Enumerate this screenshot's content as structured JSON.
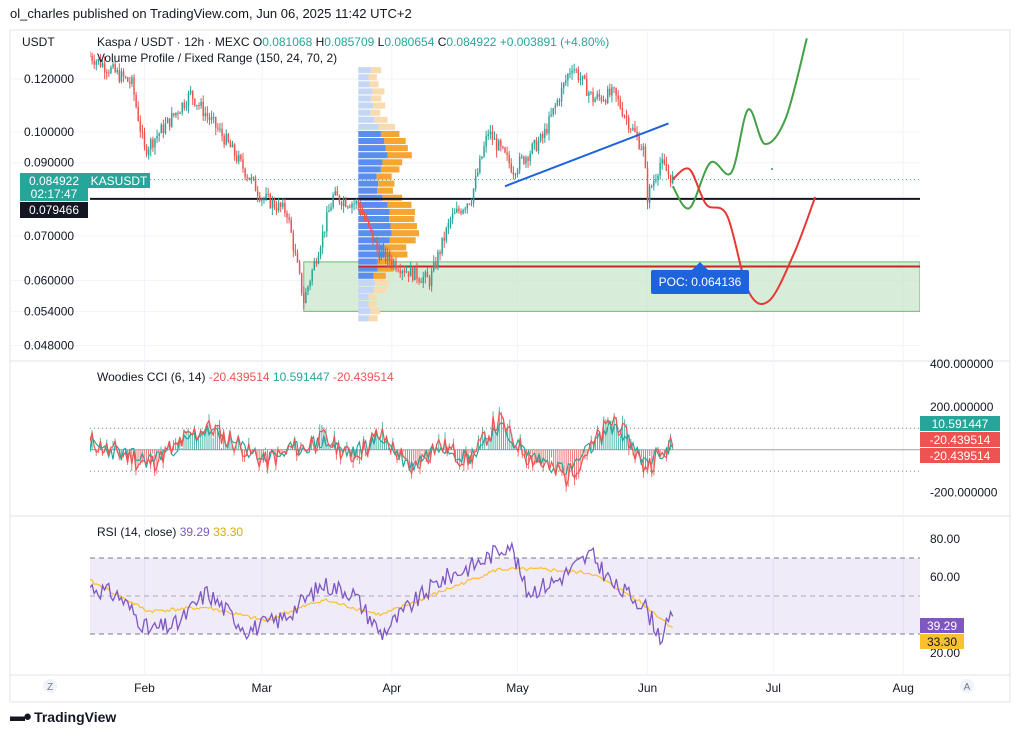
{
  "header": {
    "published": "ol_charles published on TradingView.com, Jun 06, 2025 11:42 UTC+2"
  },
  "branding": {
    "logo_text": "TradingView"
  },
  "price_pane": {
    "currency": "USDT",
    "symbol_line": "Kaspa / USDT · 12h · MEXC",
    "ohlc": {
      "o_label": "O",
      "o": "0.081068",
      "h_label": "H",
      "h": "0.085709",
      "l_label": "L",
      "l": "0.080654",
      "c_label": "C",
      "c": "0.084922",
      "change": "+0.003891 (+4.80%)"
    },
    "indicator": "Volume Profile / Fixed Range (150, 24, 70, 2)",
    "ticks": [
      "0.120000",
      "0.100000",
      "0.090000",
      "0.070000",
      "0.060000",
      "0.054000",
      "0.048000"
    ],
    "last_price": {
      "ticker": "KASUSDT",
      "value": "0.084922",
      "countdown": "02:17:47"
    },
    "line_label": "0.079466",
    "poc_label": "POC: 0.064136"
  },
  "cci_pane": {
    "title": "Woodies CCI (6, 14)",
    "v1": "-20.439514",
    "v2": "10.591447",
    "v3": "-20.439514",
    "ticks": [
      "400.000000",
      "200.000000",
      "-200.000000"
    ],
    "badges": [
      "10.591447",
      "-20.439514",
      "-20.439514"
    ]
  },
  "rsi_pane": {
    "title": "RSI (14, close)",
    "v1": "39.29",
    "v2": "33.30",
    "ticks": [
      "80.00",
      "60.00",
      "20.00"
    ],
    "badges": [
      "39.29",
      "33.30"
    ]
  },
  "time_axis": {
    "labels": [
      "Feb",
      "Mar",
      "Apr",
      "May",
      "Jun",
      "Jul",
      "Aug"
    ],
    "left_icon": "Z",
    "right_icon": "A"
  },
  "colors": {
    "up": "#26a69a",
    "down": "#ef5350",
    "rsi": "#7e57c2",
    "rsi_ma": "#fbc02d",
    "blue": "#1e62dc",
    "green_proj": "#43a047",
    "red_proj": "#e53935",
    "zone": "#c8e6c9"
  },
  "chart_data": [
    {
      "type": "candlestick",
      "title": "Kaspa / USDT · 12h · MEXC",
      "ylabel": "USDT",
      "y_scale": "log",
      "ylim": [
        0.046,
        0.142
      ],
      "x": [
        "2025-01-19",
        "2025-08-05"
      ],
      "path": [
        [
          "2025-01-19",
          0.13
        ],
        [
          "2025-01-29",
          0.118
        ],
        [
          "2025-02-01",
          0.094
        ],
        [
          "2025-02-07",
          0.104
        ],
        [
          "2025-02-12",
          0.114
        ],
        [
          "2025-02-20",
          0.098
        ],
        [
          "2025-03-01",
          0.08
        ],
        [
          "2025-03-07",
          0.076
        ],
        [
          "2025-03-11",
          0.056
        ],
        [
          "2025-03-18",
          0.08
        ],
        [
          "2025-03-24",
          0.078
        ],
        [
          "2025-03-29",
          0.066
        ],
        [
          "2025-04-05",
          0.062
        ],
        [
          "2025-04-10",
          0.06
        ],
        [
          "2025-04-15",
          0.074
        ],
        [
          "2025-04-20",
          0.08
        ],
        [
          "2025-04-24",
          0.1
        ],
        [
          "2025-04-30",
          0.088
        ],
        [
          "2025-05-07",
          0.098
        ],
        [
          "2025-05-14",
          0.126
        ],
        [
          "2025-05-19",
          0.112
        ],
        [
          "2025-05-24",
          0.114
        ],
        [
          "2025-05-31",
          0.094
        ],
        [
          "2025-06-01",
          0.08
        ],
        [
          "2025-06-04",
          0.09
        ],
        [
          "2025-06-07",
          0.084922
        ]
      ],
      "lines": [
        {
          "value": 0.079466
        },
        {
          "value": 0.063
        }
      ],
      "zone": [
        0.054,
        0.064
      ],
      "trendline": [
        [
          "2025-04-28",
          0.083
        ],
        [
          "2025-06-06",
          0.103
        ]
      ],
      "projections": [
        {
          "color": "green",
          "points": [
            [
              "2025-06-07",
              0.083
            ],
            [
              "2025-06-11",
              0.077
            ],
            [
              "2025-06-16",
              0.09
            ],
            [
              "2025-06-21",
              0.087
            ],
            [
              "2025-06-25",
              0.108
            ],
            [
              "2025-06-29",
              0.096
            ],
            [
              "2025-07-04",
              0.105
            ],
            [
              "2025-07-09",
              0.138
            ]
          ]
        },
        {
          "color": "red",
          "points": [
            [
              "2025-06-07",
              0.085
            ],
            [
              "2025-06-11",
              0.088
            ],
            [
              "2025-06-15",
              0.078
            ],
            [
              "2025-06-20",
              0.075
            ],
            [
              "2025-06-25",
              0.058
            ],
            [
              "2025-06-30",
              0.056
            ],
            [
              "2025-07-06",
              0.066
            ],
            [
              "2025-07-11",
              0.08
            ]
          ]
        }
      ],
      "volume_profile_poc": 0.064136
    },
    {
      "type": "line",
      "title": "Woodies CCI (6, 14)",
      "ylim": [
        -300,
        400
      ],
      "series": [
        {
          "name": "",
          "anchors": [
            [
              0,
              40
            ],
            [
              0.1,
              -80
            ],
            [
              0.2,
              120
            ],
            [
              0.3,
              -60
            ],
            [
              0.4,
              60
            ],
            [
              0.45,
              -40
            ],
            [
              0.5,
              80
            ],
            [
              0.55,
              -100
            ],
            [
              0.6,
              40
            ],
            [
              0.65,
              -60
            ],
            [
              0.7,
              150
            ],
            [
              0.75,
              -30
            ],
            [
              0.82,
              -140
            ],
            [
              0.9,
              160
            ],
            [
              0.95,
              -90
            ],
            [
              1.0,
              20
            ]
          ]
        },
        {
          "name": "",
          "anchors": [
            [
              0,
              20
            ],
            [
              0.1,
              -50
            ],
            [
              0.2,
              90
            ],
            [
              0.3,
              -40
            ],
            [
              0.4,
              40
            ],
            [
              0.45,
              -20
            ],
            [
              0.5,
              60
            ],
            [
              0.55,
              -80
            ],
            [
              0.6,
              30
            ],
            [
              0.65,
              -40
            ],
            [
              0.7,
              110
            ],
            [
              0.75,
              -20
            ],
            [
              0.82,
              -100
            ],
            [
              0.9,
              120
            ],
            [
              0.95,
              -60
            ],
            [
              1.0,
              10
            ]
          ]
        }
      ],
      "last": [
        10.591447,
        -20.439514
      ]
    },
    {
      "type": "line",
      "title": "RSI (14, close)",
      "ylim": [
        10,
        90
      ],
      "bands": [
        30,
        50,
        70
      ],
      "series": [
        {
          "name": "RSI",
          "anchors": [
            [
              0,
              55
            ],
            [
              0.05,
              50
            ],
            [
              0.1,
              32
            ],
            [
              0.15,
              35
            ],
            [
              0.2,
              52
            ],
            [
              0.27,
              32
            ],
            [
              0.33,
              38
            ],
            [
              0.4,
              56
            ],
            [
              0.45,
              52
            ],
            [
              0.5,
              30
            ],
            [
              0.55,
              45
            ],
            [
              0.6,
              58
            ],
            [
              0.67,
              68
            ],
            [
              0.72,
              78
            ],
            [
              0.75,
              52
            ],
            [
              0.8,
              58
            ],
            [
              0.86,
              72
            ],
            [
              0.9,
              55
            ],
            [
              0.95,
              46
            ],
            [
              0.98,
              28
            ],
            [
              1.0,
              39.29
            ]
          ]
        },
        {
          "name": "MA",
          "anchors": [
            [
              0,
              58
            ],
            [
              0.1,
              42
            ],
            [
              0.2,
              44
            ],
            [
              0.3,
              37
            ],
            [
              0.4,
              48
            ],
            [
              0.5,
              40
            ],
            [
              0.6,
              52
            ],
            [
              0.7,
              64
            ],
            [
              0.78,
              64
            ],
            [
              0.86,
              62
            ],
            [
              0.94,
              48
            ],
            [
              1.0,
              33.3
            ]
          ]
        }
      ]
    }
  ]
}
